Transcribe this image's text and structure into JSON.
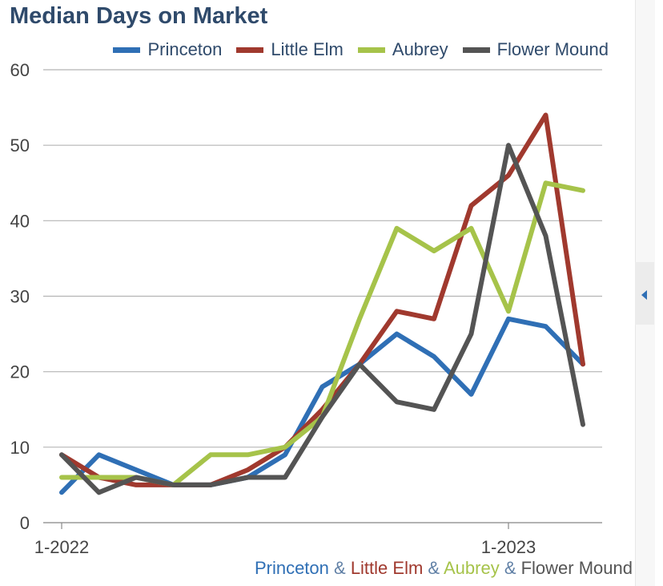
{
  "title": "Median Days on Market",
  "legend": [
    {
      "name": "Princeton",
      "color": "#2f6fb5"
    },
    {
      "name": "Little Elm",
      "color": "#a0392e"
    },
    {
      "name": "Aubrey",
      "color": "#a6c34a"
    },
    {
      "name": "Flower Mound",
      "color": "#545454"
    }
  ],
  "footer": {
    "parts": [
      "Princeton",
      "Little Elm",
      "Aubrey",
      "Flower Mound"
    ],
    "separator": "&"
  },
  "chart_data": {
    "type": "line",
    "title": "Median Days on Market",
    "x": [
      "1-2022",
      "2-2022",
      "3-2022",
      "4-2022",
      "5-2022",
      "6-2022",
      "7-2022",
      "8-2022",
      "9-2022",
      "10-2022",
      "11-2022",
      "12-2022",
      "1-2023",
      "2-2023",
      "3-2023"
    ],
    "x_tick_labels": [
      "1-2022",
      "1-2023"
    ],
    "y_ticks": [
      0,
      10,
      20,
      30,
      40,
      50,
      60
    ],
    "ylim": [
      0,
      60
    ],
    "grid": true,
    "legend_position": "top",
    "series": [
      {
        "name": "Princeton",
        "color": "#2f6fb5",
        "values": [
          4,
          9,
          7,
          5,
          5,
          6,
          9,
          18,
          21,
          25,
          22,
          17,
          27,
          26,
          21
        ]
      },
      {
        "name": "Little Elm",
        "color": "#a0392e",
        "values": [
          9,
          6,
          5,
          5,
          5,
          7,
          10,
          15,
          21,
          28,
          27,
          42,
          46,
          54,
          21
        ]
      },
      {
        "name": "Aubrey",
        "color": "#a6c34a",
        "values": [
          6,
          6,
          6,
          5,
          9,
          9,
          10,
          14,
          27,
          39,
          36,
          39,
          28,
          45,
          44
        ]
      },
      {
        "name": "Flower Mound",
        "color": "#545454",
        "values": [
          9,
          4,
          6,
          5,
          5,
          6,
          6,
          14,
          21,
          16,
          15,
          25,
          50,
          38,
          13
        ]
      }
    ]
  }
}
